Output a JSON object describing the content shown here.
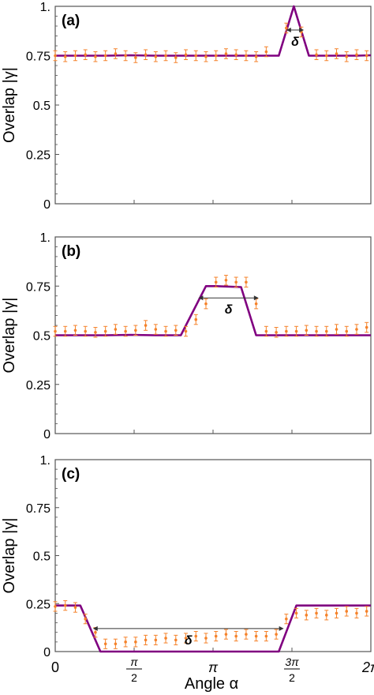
{
  "figure": {
    "xlabel": "Angle α"
  },
  "chart_data": [
    {
      "type": "line",
      "panel_label": "(a)",
      "ylabel": "Overlap |γ|",
      "xlabel": "",
      "ylim": [
        0,
        1
      ],
      "xlim": [
        0,
        6.2832
      ],
      "yticks": [
        "0",
        "0.25",
        "0.5",
        "0.75",
        "1."
      ],
      "xticks": [],
      "grid": false,
      "theory": {
        "x": [
          0.0,
          0.5,
          1.0,
          1.5,
          2.0,
          2.5,
          3.0,
          3.5,
          4.0,
          4.45,
          4.75,
          5.05,
          5.5,
          6.0,
          6.2832
        ],
        "y": [
          0.75,
          0.75,
          0.75,
          0.752,
          0.75,
          0.75,
          0.75,
          0.75,
          0.75,
          0.75,
          1.0,
          0.75,
          0.75,
          0.75,
          0.752
        ]
      },
      "experiment": {
        "x": [
          0.0,
          0.2,
          0.4,
          0.6,
          0.8,
          1.0,
          1.2,
          1.4,
          1.6,
          1.8,
          2.0,
          2.2,
          2.4,
          2.6,
          2.8,
          3.0,
          3.2,
          3.4,
          3.6,
          3.8,
          4.0,
          4.2,
          4.6,
          4.9,
          5.2,
          5.4,
          5.6,
          5.8,
          6.0,
          6.2
        ],
        "y": [
          0.75,
          0.745,
          0.75,
          0.755,
          0.745,
          0.75,
          0.76,
          0.75,
          0.74,
          0.755,
          0.745,
          0.75,
          0.74,
          0.755,
          0.75,
          0.745,
          0.75,
          0.76,
          0.755,
          0.75,
          0.745,
          0.77,
          0.89,
          0.87,
          0.755,
          0.75,
          0.76,
          0.745,
          0.755,
          0.75
        ],
        "err": 0.025
      },
      "delta": {
        "label": "δ",
        "x1": 4.6,
        "x2": 4.95,
        "y": 0.88
      }
    },
    {
      "type": "line",
      "panel_label": "(b)",
      "ylabel": "Overlap |γ|",
      "xlabel": "",
      "ylim": [
        0,
        1
      ],
      "xlim": [
        0,
        6.2832
      ],
      "yticks": [
        "0",
        "0.25",
        "0.5",
        "0.75",
        "1."
      ],
      "xticks": [],
      "grid": false,
      "theory": {
        "x": [
          0.0,
          0.5,
          1.0,
          1.5,
          2.0,
          2.5,
          3.0,
          3.2,
          3.7,
          4.0,
          4.6,
          5.0,
          5.5,
          6.0,
          6.2832
        ],
        "y": [
          0.5,
          0.5,
          0.5,
          0.502,
          0.5,
          0.5,
          0.75,
          0.75,
          0.745,
          0.5,
          0.5,
          0.5,
          0.5,
          0.5,
          0.5
        ]
      },
      "experiment": {
        "x": [
          0.0,
          0.2,
          0.4,
          0.6,
          0.8,
          1.0,
          1.2,
          1.4,
          1.6,
          1.8,
          2.0,
          2.2,
          2.4,
          2.6,
          2.8,
          3.0,
          3.2,
          3.4,
          3.6,
          3.8,
          4.0,
          4.2,
          4.4,
          4.6,
          4.8,
          5.0,
          5.2,
          5.4,
          5.6,
          5.8,
          6.0,
          6.2
        ],
        "y": [
          0.52,
          0.52,
          0.525,
          0.52,
          0.515,
          0.52,
          0.53,
          0.52,
          0.525,
          0.55,
          0.53,
          0.52,
          0.525,
          0.52,
          0.58,
          0.66,
          0.77,
          0.78,
          0.77,
          0.77,
          0.66,
          0.52,
          0.515,
          0.52,
          0.52,
          0.525,
          0.52,
          0.52,
          0.53,
          0.52,
          0.53,
          0.54
        ],
        "err": 0.025
      },
      "delta": {
        "label": "δ",
        "x1": 2.85,
        "x2": 4.05,
        "y": 0.69
      }
    },
    {
      "type": "line",
      "panel_label": "(c)",
      "ylabel": "Overlap |γ|",
      "xlabel": "Angle α",
      "ylim": [
        0,
        1
      ],
      "xlim": [
        0,
        6.2832
      ],
      "yticks": [
        "0",
        "0.25",
        "0.5",
        "0.75",
        "1."
      ],
      "xticks": [
        "0",
        "π/2",
        "π",
        "3π/2",
        "2π"
      ],
      "grid": false,
      "theory": {
        "x": [
          0.0,
          0.5,
          0.9,
          1.5,
          2.0,
          2.5,
          3.0,
          3.5,
          4.0,
          4.45,
          4.8,
          5.5,
          6.0,
          6.2832
        ],
        "y": [
          0.24,
          0.24,
          0.0,
          0.0,
          0.0,
          0.0,
          0.0,
          0.0,
          0.0,
          0.0,
          0.24,
          0.24,
          0.24,
          0.24
        ]
      },
      "experiment": {
        "x": [
          0.0,
          0.2,
          0.4,
          0.6,
          0.8,
          1.0,
          1.2,
          1.4,
          1.6,
          1.8,
          2.0,
          2.2,
          2.4,
          2.6,
          2.8,
          3.0,
          3.2,
          3.4,
          3.6,
          3.8,
          4.0,
          4.2,
          4.4,
          4.6,
          4.8,
          5.0,
          5.2,
          5.4,
          5.6,
          5.8,
          6.0,
          6.2
        ],
        "y": [
          0.235,
          0.24,
          0.23,
          0.17,
          0.1,
          0.04,
          0.04,
          0.05,
          0.05,
          0.06,
          0.06,
          0.07,
          0.06,
          0.07,
          0.08,
          0.07,
          0.08,
          0.09,
          0.08,
          0.09,
          0.08,
          0.08,
          0.09,
          0.17,
          0.2,
          0.19,
          0.2,
          0.19,
          0.2,
          0.21,
          0.2,
          0.21
        ],
        "err": 0.025
      },
      "delta": {
        "label": "δ",
        "x1": 0.75,
        "x2": 4.55,
        "y": 0.12
      }
    }
  ],
  "colors": {
    "theory": "#800080",
    "experiment": "#f5822a",
    "axis": "#555555"
  }
}
